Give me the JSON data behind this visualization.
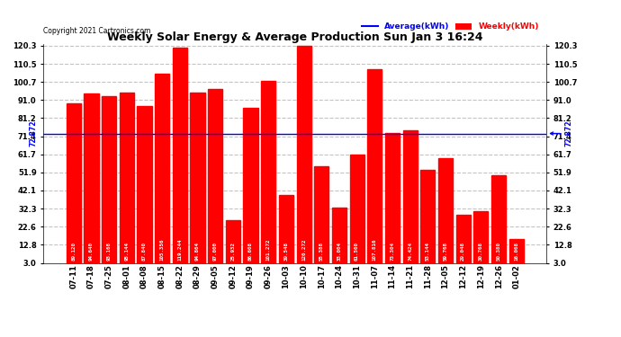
{
  "title": "Weekly Solar Energy & Average Production Sun Jan 3 16:24",
  "copyright": "Copyright 2021 Cartronics.com",
  "categories": [
    "07-11",
    "07-18",
    "07-25",
    "08-01",
    "08-08",
    "08-15",
    "08-22",
    "08-29",
    "09-05",
    "09-12",
    "09-19",
    "09-26",
    "10-03",
    "10-10",
    "10-17",
    "10-24",
    "10-31",
    "11-07",
    "11-14",
    "11-21",
    "11-28",
    "12-05",
    "12-12",
    "12-19",
    "12-26",
    "01-02"
  ],
  "values": [
    89.12,
    94.64,
    93.168,
    95.144,
    87.84,
    105.356,
    119.244,
    94.864,
    97.0,
    25.932,
    86.608,
    101.272,
    39.548,
    120.272,
    55.388,
    33.004,
    61.56,
    107.816,
    73.304,
    74.424,
    53.144,
    59.768,
    29.048,
    30.768,
    50.38,
    16.068
  ],
  "average": 72.872,
  "bar_color": "#ff0000",
  "average_line_color": "#0000ff",
  "average_label_color": "#0000ff",
  "weekly_label_color": "#ff0000",
  "title_color": "#000000",
  "copyright_color": "#000000",
  "background_color": "#ffffff",
  "yticks": [
    3.0,
    12.8,
    22.6,
    32.3,
    42.1,
    51.9,
    61.7,
    71.4,
    81.2,
    91.0,
    100.7,
    110.5,
    120.3
  ],
  "ylim_min": 3.0,
  "ylim_max": 120.3,
  "legend_avg_label": "Average(kWh)",
  "legend_weekly_label": "Weekly(kWh)",
  "avg_label": "72.872",
  "title_fontsize": 9,
  "tick_fontsize": 6,
  "bar_label_fontsize": 4.2,
  "copyright_fontsize": 5.5
}
